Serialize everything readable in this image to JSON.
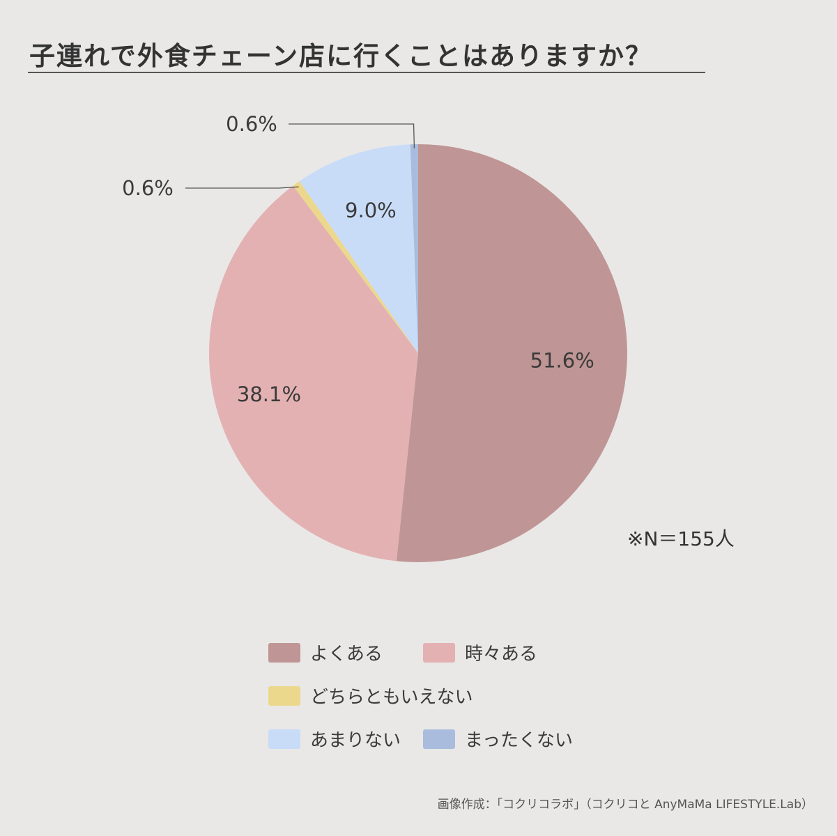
{
  "title": "子連れで外食チェーン店に行くことはありますか？",
  "chart_data": {
    "type": "pie",
    "title": "子連れで外食チェーン店に行くことはありますか？",
    "slices": [
      {
        "label": "よくある",
        "value": 51.6,
        "display": "51.6%",
        "color": "#bf9695"
      },
      {
        "label": "時々ある",
        "value": 38.1,
        "display": "38.1%",
        "color": "#e3b1b2"
      },
      {
        "label": "どちらともいえない",
        "value": 0.6,
        "display": "0.6%",
        "color": "#ecd88c"
      },
      {
        "label": "あまりない",
        "value": 9.0,
        "display": "9.0%",
        "color": "#c9dcf7"
      },
      {
        "label": "まったくない",
        "value": 0.6,
        "display": "0.6%",
        "color": "#a9bcdd"
      }
    ],
    "start": "top",
    "direction": "clockwise",
    "legend_placement": "bottom"
  },
  "note": "※N＝155人",
  "legend": [
    {
      "label": "よくある",
      "color": "#bf9695"
    },
    {
      "label": "時々ある",
      "color": "#e3b1b2"
    },
    {
      "label": "どちらともいえない",
      "color": "#ecd88c"
    },
    {
      "label": "あまりない",
      "color": "#c9dcf7"
    },
    {
      "label": "まったくない",
      "color": "#a9bcdd"
    }
  ],
  "credit": "画像作成：「コクリコラボ」（コクリコと AnyMaMa LIFESTYLE.Lab）"
}
